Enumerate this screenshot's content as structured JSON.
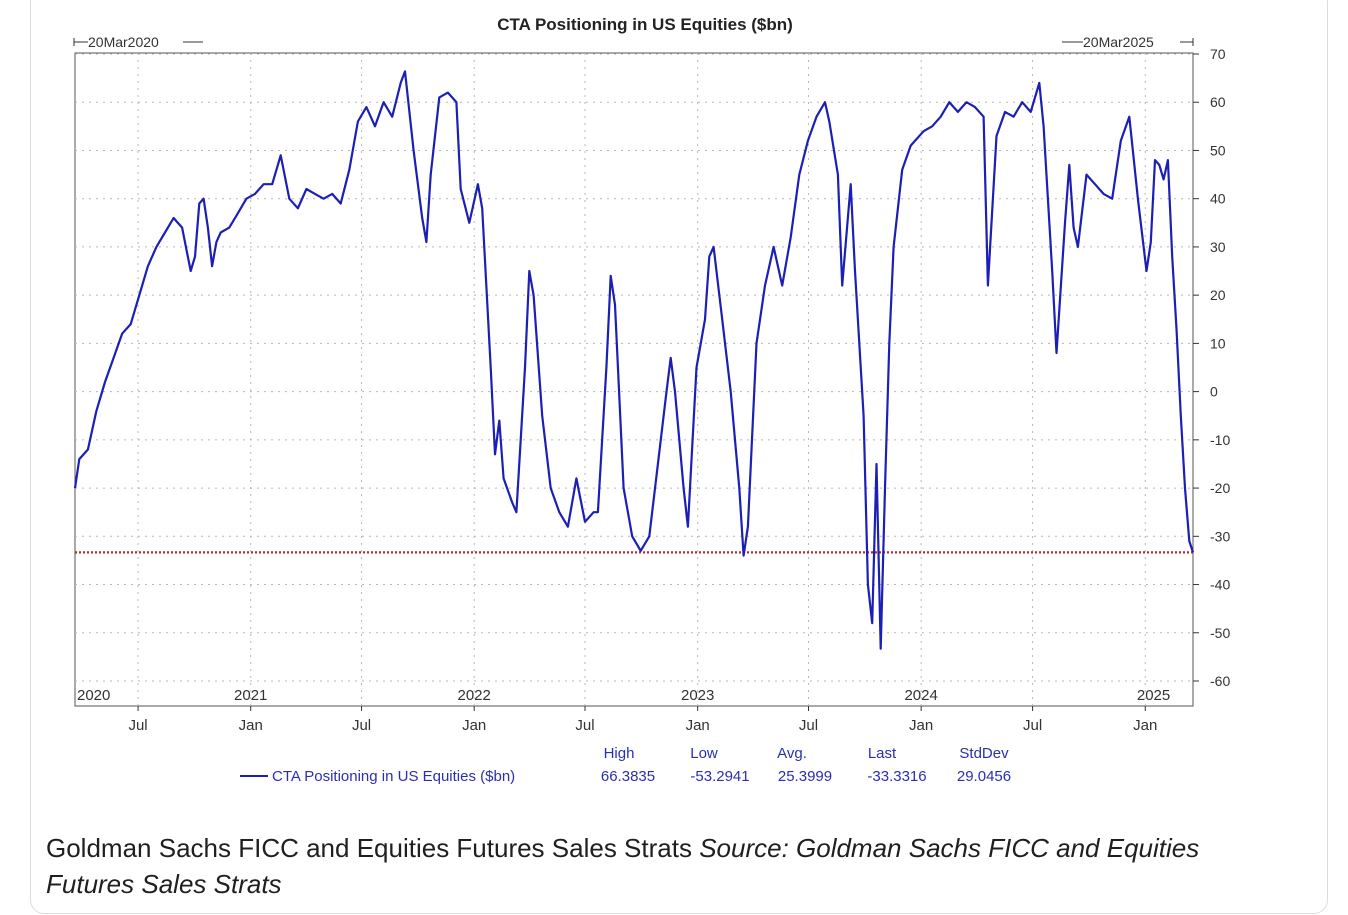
{
  "card": {
    "caption_plain": "Goldman Sachs FICC and Equities Futures Sales Strats ",
    "caption_italic": "Source: Goldman Sachs FICC and Equities Futures Sales Strats"
  },
  "colors": {
    "series": "#1c1fb5",
    "reference_line": "#c0262b",
    "grid": "#b8b8b8",
    "axis": "#333333",
    "footer_text": "#2a2fb0"
  },
  "chart_data": {
    "type": "line",
    "title": "CTA Positioning in US Equities ($bn)",
    "start_label": "20Mar2020",
    "end_label": "20Mar2025",
    "x_range": [
      "2020-03-20",
      "2025-03-20"
    ],
    "ylim": [
      -60,
      70
    ],
    "y_ticks": [
      70,
      60,
      50,
      40,
      30,
      20,
      10,
      0,
      -10,
      -20,
      -30,
      -40,
      -50,
      -60
    ],
    "y_axis_side": "right",
    "grid": true,
    "year_labels": [
      {
        "date": "2020-03-20",
        "label": "2020"
      },
      {
        "date": "2021-01-01",
        "label": "2021"
      },
      {
        "date": "2022-01-01",
        "label": "2022"
      },
      {
        "date": "2023-01-01",
        "label": "2023"
      },
      {
        "date": "2024-01-01",
        "label": "2024"
      },
      {
        "date": "2025-01-01",
        "label": "2025"
      }
    ],
    "month_labels": [
      {
        "date": "2020-07-01",
        "label": "Jul"
      },
      {
        "date": "2021-01-01",
        "label": "Jan"
      },
      {
        "date": "2021-07-01",
        "label": "Jul"
      },
      {
        "date": "2022-01-01",
        "label": "Jan"
      },
      {
        "date": "2022-07-01",
        "label": "Jul"
      },
      {
        "date": "2023-01-01",
        "label": "Jan"
      },
      {
        "date": "2023-07-01",
        "label": "Jul"
      },
      {
        "date": "2024-01-01",
        "label": "Jan"
      },
      {
        "date": "2024-07-01",
        "label": "Jul"
      },
      {
        "date": "2025-01-01",
        "label": "Jan"
      }
    ],
    "reference_line": {
      "value": -33.3316
    },
    "series": [
      {
        "name": "CTA Positioning in US Equities ($bn)",
        "points": [
          [
            "2020-03-20",
            -20
          ],
          [
            "2020-03-27",
            -14
          ],
          [
            "2020-04-10",
            -12
          ],
          [
            "2020-04-24",
            -4
          ],
          [
            "2020-05-08",
            2
          ],
          [
            "2020-05-22",
            7
          ],
          [
            "2020-06-05",
            12
          ],
          [
            "2020-06-19",
            14
          ],
          [
            "2020-07-03",
            20
          ],
          [
            "2020-07-17",
            26
          ],
          [
            "2020-07-31",
            30
          ],
          [
            "2020-08-14",
            33
          ],
          [
            "2020-08-28",
            36
          ],
          [
            "2020-09-11",
            34
          ],
          [
            "2020-09-25",
            25
          ],
          [
            "2020-10-02",
            28
          ],
          [
            "2020-10-09",
            39
          ],
          [
            "2020-10-16",
            40
          ],
          [
            "2020-10-23",
            34
          ],
          [
            "2020-10-30",
            26
          ],
          [
            "2020-11-06",
            31
          ],
          [
            "2020-11-13",
            33
          ],
          [
            "2020-11-27",
            34
          ],
          [
            "2020-12-11",
            37
          ],
          [
            "2020-12-25",
            40
          ],
          [
            "2021-01-08",
            41
          ],
          [
            "2021-01-22",
            43
          ],
          [
            "2021-02-05",
            43
          ],
          [
            "2021-02-19",
            49
          ],
          [
            "2021-03-05",
            40
          ],
          [
            "2021-03-19",
            38
          ],
          [
            "2021-04-02",
            42
          ],
          [
            "2021-04-16",
            41
          ],
          [
            "2021-04-30",
            40
          ],
          [
            "2021-05-14",
            41
          ],
          [
            "2021-05-28",
            39
          ],
          [
            "2021-06-11",
            46
          ],
          [
            "2021-06-25",
            56
          ],
          [
            "2021-07-09",
            59
          ],
          [
            "2021-07-23",
            55
          ],
          [
            "2021-08-06",
            60
          ],
          [
            "2021-08-20",
            57
          ],
          [
            "2021-09-03",
            64
          ],
          [
            "2021-09-10",
            66.3835
          ],
          [
            "2021-09-24",
            50
          ],
          [
            "2021-10-08",
            36
          ],
          [
            "2021-10-15",
            31
          ],
          [
            "2021-10-22",
            45
          ],
          [
            "2021-11-05",
            61
          ],
          [
            "2021-11-19",
            62
          ],
          [
            "2021-12-03",
            60
          ],
          [
            "2021-12-10",
            42
          ],
          [
            "2021-12-24",
            35
          ],
          [
            "2022-01-07",
            43
          ],
          [
            "2022-01-14",
            38
          ],
          [
            "2022-01-28",
            5
          ],
          [
            "2022-02-04",
            -13
          ],
          [
            "2022-02-11",
            -6
          ],
          [
            "2022-02-18",
            -18
          ],
          [
            "2022-03-04",
            -23
          ],
          [
            "2022-03-11",
            -25
          ],
          [
            "2022-03-25",
            5
          ],
          [
            "2022-04-01",
            25
          ],
          [
            "2022-04-08",
            20
          ],
          [
            "2022-04-22",
            -5
          ],
          [
            "2022-05-06",
            -20
          ],
          [
            "2022-05-20",
            -25
          ],
          [
            "2022-06-03",
            -28
          ],
          [
            "2022-06-17",
            -18
          ],
          [
            "2022-07-01",
            -27
          ],
          [
            "2022-07-15",
            -25
          ],
          [
            "2022-07-22",
            -25
          ],
          [
            "2022-08-05",
            5
          ],
          [
            "2022-08-12",
            24
          ],
          [
            "2022-08-19",
            18
          ],
          [
            "2022-09-02",
            -20
          ],
          [
            "2022-09-16",
            -30
          ],
          [
            "2022-09-30",
            -33
          ],
          [
            "2022-10-14",
            -30
          ],
          [
            "2022-10-28",
            -15
          ],
          [
            "2022-11-11",
            0
          ],
          [
            "2022-11-18",
            7
          ],
          [
            "2022-11-25",
            0
          ],
          [
            "2022-12-09",
            -20
          ],
          [
            "2022-12-16",
            -28
          ],
          [
            "2022-12-30",
            5
          ],
          [
            "2023-01-13",
            15
          ],
          [
            "2023-01-20",
            28
          ],
          [
            "2023-01-27",
            30
          ],
          [
            "2023-02-10",
            15
          ],
          [
            "2023-02-24",
            0
          ],
          [
            "2023-03-10",
            -20
          ],
          [
            "2023-03-17",
            -34
          ],
          [
            "2023-03-24",
            -28
          ],
          [
            "2023-04-07",
            10
          ],
          [
            "2023-04-21",
            22
          ],
          [
            "2023-05-05",
            30
          ],
          [
            "2023-05-19",
            22
          ],
          [
            "2023-06-02",
            32
          ],
          [
            "2023-06-16",
            45
          ],
          [
            "2023-06-30",
            52
          ],
          [
            "2023-07-14",
            57
          ],
          [
            "2023-07-28",
            60
          ],
          [
            "2023-08-04",
            56
          ],
          [
            "2023-08-18",
            45
          ],
          [
            "2023-08-25",
            22
          ],
          [
            "2023-09-08",
            43
          ],
          [
            "2023-09-15",
            25
          ],
          [
            "2023-09-29",
            -5
          ],
          [
            "2023-10-06",
            -40
          ],
          [
            "2023-10-13",
            -48
          ],
          [
            "2023-10-20",
            -15
          ],
          [
            "2023-10-27",
            -53.2941
          ],
          [
            "2023-11-03",
            -20
          ],
          [
            "2023-11-10",
            10
          ],
          [
            "2023-11-17",
            30
          ],
          [
            "2023-12-01",
            46
          ],
          [
            "2023-12-15",
            51
          ],
          [
            "2024-01-05",
            54
          ],
          [
            "2024-01-19",
            55
          ],
          [
            "2024-02-02",
            57
          ],
          [
            "2024-02-16",
            60
          ],
          [
            "2024-03-01",
            58
          ],
          [
            "2024-03-15",
            60
          ],
          [
            "2024-03-29",
            59
          ],
          [
            "2024-04-12",
            57
          ],
          [
            "2024-04-19",
            22
          ],
          [
            "2024-05-03",
            53
          ],
          [
            "2024-05-17",
            58
          ],
          [
            "2024-05-31",
            57
          ],
          [
            "2024-06-14",
            60
          ],
          [
            "2024-06-28",
            58
          ],
          [
            "2024-07-12",
            64
          ],
          [
            "2024-07-19",
            55
          ],
          [
            "2024-08-02",
            25
          ],
          [
            "2024-08-09",
            8
          ],
          [
            "2024-08-23",
            35
          ],
          [
            "2024-08-30",
            47
          ],
          [
            "2024-09-06",
            34
          ],
          [
            "2024-09-13",
            30
          ],
          [
            "2024-09-27",
            45
          ],
          [
            "2024-10-11",
            43
          ],
          [
            "2024-10-25",
            41
          ],
          [
            "2024-11-08",
            40
          ],
          [
            "2024-11-22",
            52
          ],
          [
            "2024-12-06",
            57
          ],
          [
            "2024-12-20",
            40
          ],
          [
            "2025-01-03",
            25
          ],
          [
            "2025-01-10",
            31
          ],
          [
            "2025-01-17",
            48
          ],
          [
            "2025-01-24",
            47
          ],
          [
            "2025-01-31",
            44
          ],
          [
            "2025-02-07",
            48
          ],
          [
            "2025-02-14",
            28
          ],
          [
            "2025-02-21",
            13
          ],
          [
            "2025-02-28",
            -5
          ],
          [
            "2025-03-07",
            -20
          ],
          [
            "2025-03-14",
            -31
          ],
          [
            "2025-03-20",
            -33.3316
          ]
        ]
      }
    ],
    "stats": {
      "headers": [
        "High",
        "Low",
        "Avg.",
        "Last",
        "StdDev"
      ],
      "legend_label": "CTA Positioning in US Equities ($bn)",
      "values": [
        "66.3835",
        "-53.2941",
        "25.3999",
        "-33.3316",
        "29.0456"
      ]
    }
  }
}
